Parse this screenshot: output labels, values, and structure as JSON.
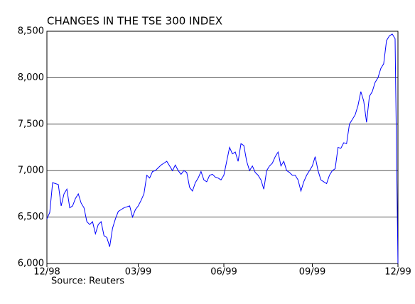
{
  "chart_data": {
    "type": "line",
    "title": "CHANGES IN THE TSE 300 INDEX",
    "source": "Source: Reuters",
    "categories": [
      "12/98",
      null,
      null,
      null,
      null,
      null,
      null,
      null,
      null,
      null,
      null,
      null,
      null,
      null,
      null,
      null,
      null,
      null,
      null,
      null,
      null,
      null,
      null,
      null,
      null,
      null,
      null,
      null,
      null,
      null,
      null,
      null,
      "03/99",
      null,
      null,
      null,
      null,
      null,
      null,
      null,
      null,
      null,
      null,
      null,
      null,
      null,
      null,
      null,
      null,
      null,
      null,
      null,
      null,
      null,
      null,
      null,
      null,
      null,
      null,
      null,
      null,
      null,
      "06/99",
      null,
      null,
      null,
      null,
      null,
      null,
      null,
      null,
      null,
      null,
      null,
      null,
      null,
      null,
      null,
      null,
      null,
      null,
      null,
      null,
      null,
      null,
      null,
      null,
      null,
      null,
      null,
      null,
      null,
      null,
      "09/99",
      null,
      null,
      null,
      null,
      null,
      null,
      null,
      null,
      null,
      null,
      null,
      null,
      null,
      null,
      null,
      null,
      null,
      null,
      null,
      null,
      null,
      null,
      null,
      null,
      null,
      null,
      null,
      null,
      null,
      "12/99"
    ],
    "series": [
      {
        "name": "TSE 300",
        "color": "#0000ff",
        "values": [
          6480,
          6550,
          6870,
          6860,
          6850,
          6620,
          6750,
          6800,
          6600,
          6620,
          6700,
          6750,
          6650,
          6600,
          6450,
          6420,
          6450,
          6320,
          6420,
          6450,
          6300,
          6280,
          6180,
          6380,
          6480,
          6560,
          6580,
          6600,
          6610,
          6620,
          6500,
          6580,
          6620,
          6680,
          6750,
          6950,
          6920,
          6990,
          7000,
          7030,
          7060,
          7080,
          7100,
          7050,
          7000,
          7060,
          7000,
          6960,
          7000,
          6980,
          6820,
          6780,
          6870,
          6920,
          6990,
          6900,
          6880,
          6950,
          6960,
          6930,
          6920,
          6900,
          6950,
          7100,
          7250,
          7180,
          7200,
          7100,
          7290,
          7270,
          7100,
          7000,
          7050,
          6980,
          6950,
          6900,
          6800,
          7000,
          7050,
          7080,
          7150,
          7200,
          7050,
          7100,
          7000,
          6980,
          6950,
          6950,
          6900,
          6780,
          6880,
          6950,
          7000,
          7050,
          7150,
          7000,
          6900,
          6880,
          6860,
          6950,
          7000,
          7020,
          7250,
          7240,
          7300,
          7290,
          7500,
          7550,
          7600,
          7700,
          7850,
          7750,
          7520,
          7800,
          7850,
          7950,
          8000,
          8100,
          8150,
          8400,
          8450,
          8470,
          8420,
          6000
        ]
      }
    ],
    "ylim": [
      6000,
      8500
    ],
    "yticks": [
      {
        "value": 6000,
        "label": "6,000"
      },
      {
        "value": 6500,
        "label": "6,500"
      },
      {
        "value": 7000,
        "label": "7,000"
      },
      {
        "value": 7500,
        "label": "7,500"
      },
      {
        "value": 8000,
        "label": "8,000"
      },
      {
        "value": 8500,
        "label": "8,500"
      }
    ],
    "grid": true
  }
}
